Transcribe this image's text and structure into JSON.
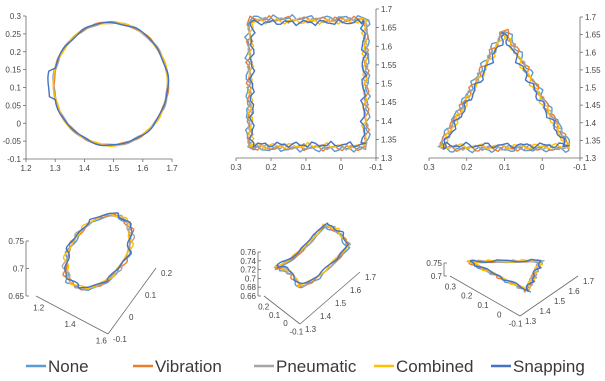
{
  "chart_data": {
    "type": "line",
    "legend": {
      "placement": "bottom",
      "series": [
        {
          "name": "None",
          "color": "#5b9bd5"
        },
        {
          "name": "Vibration",
          "color": "#ed7d31"
        },
        {
          "name": "Pneumatic",
          "color": "#a5a5a5"
        },
        {
          "name": "Combined",
          "color": "#ffc000"
        },
        {
          "name": "Snapping",
          "color": "#4472c4"
        }
      ]
    },
    "panels": [
      {
        "kind": "2d",
        "shape": "circle",
        "xlim": [
          1.2,
          1.7
        ],
        "ylim": [
          -0.1,
          0.3
        ],
        "x_ticks": [
          "1.2",
          "1.3",
          "1.4",
          "1.5",
          "1.6",
          "1.7"
        ],
        "y_ticks": [
          "-0.1",
          "-0.05",
          "0",
          "0.05",
          "0.1",
          "0.15",
          "0.2",
          "0.25",
          "0.3"
        ],
        "y_axis_side": "left",
        "trace": {
          "cx": 1.49,
          "cy": 0.11,
          "rx": 0.19,
          "ry": 0.165
        }
      },
      {
        "kind": "2d",
        "shape": "square",
        "xlim": [
          0.3,
          -0.1
        ],
        "ylim": [
          1.3,
          1.7
        ],
        "x_ticks": [
          "0.3",
          "0.2",
          "0.1",
          "0",
          "-0.1"
        ],
        "y_ticks": [
          "1.3",
          "1.35",
          "1.4",
          "1.45",
          "1.5",
          "1.55",
          "1.6",
          "1.65",
          "1.7"
        ],
        "y_axis_side": "right",
        "trace": {
          "x_min": -0.07,
          "x_max": 0.26,
          "y_min": 1.33,
          "y_max": 1.67
        }
      },
      {
        "kind": "2d",
        "shape": "triangle",
        "xlim": [
          0.3,
          -0.1
        ],
        "ylim": [
          1.3,
          1.7
        ],
        "x_ticks": [
          "0.3",
          "0.2",
          "0.1",
          "0",
          "-0.1"
        ],
        "y_ticks": [
          "1.3",
          "1.35",
          "1.4",
          "1.45",
          "1.5",
          "1.55",
          "1.6",
          "1.65",
          "1.7"
        ],
        "y_axis_side": "right",
        "trace": {
          "vertices": [
            [
              0.27,
              1.33
            ],
            [
              0.1,
              1.66
            ],
            [
              -0.07,
              1.33
            ]
          ]
        }
      },
      {
        "kind": "3d",
        "shape": "circle",
        "z_ticks": [
          "0.65",
          "0.7",
          "0.75"
        ],
        "a_ticks": [
          "1.2",
          "1.4",
          "1.6"
        ],
        "b_ticks": [
          "-0.1",
          "0",
          "0.1",
          "0.2"
        ]
      },
      {
        "kind": "3d",
        "shape": "square",
        "z_ticks": [
          "0.66",
          "0.68",
          "0.7",
          "0.72",
          "0.74",
          "0.76"
        ],
        "a_ticks": [
          "0.2",
          "0.1",
          "0",
          "-0.1"
        ],
        "b_ticks": [
          "1.3",
          "1.4",
          "1.5",
          "1.6",
          "1.7"
        ]
      },
      {
        "kind": "3d",
        "shape": "triangle",
        "z_ticks": [
          "0.7",
          "0.75"
        ],
        "a_ticks": [
          "0.3",
          "0.2",
          "0.1",
          "0",
          "-0.1"
        ],
        "b_ticks": [
          "1.3",
          "1.4",
          "1.5",
          "1.6",
          "1.7"
        ]
      }
    ]
  }
}
